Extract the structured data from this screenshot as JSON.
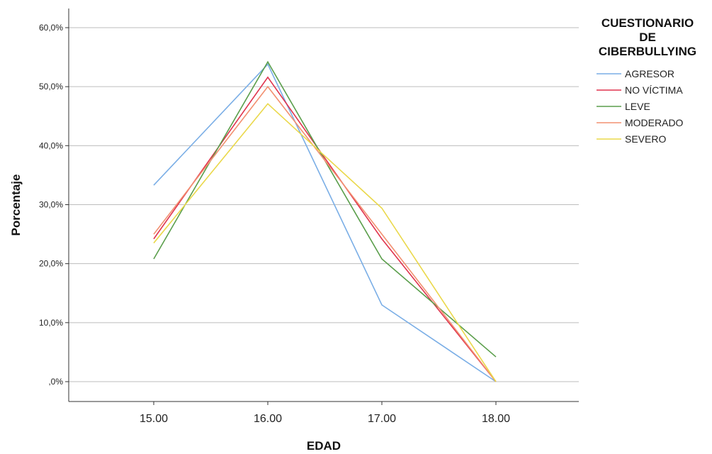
{
  "chart_data": {
    "type": "line",
    "title": "",
    "xlabel": "EDAD",
    "ylabel": "Porcentaje",
    "x": [
      "15.00",
      "16.00",
      "17.00",
      "18.00"
    ],
    "ylim": [
      0,
      60
    ],
    "yticks": [
      0,
      10,
      20,
      30,
      40,
      50,
      60
    ],
    "ytick_labels": [
      ",0%",
      "10,0%",
      "20,0%",
      "30,0%",
      "40,0%",
      "50,0%",
      "60,0%"
    ],
    "grid": true,
    "legend": {
      "title_lines": [
        "CUESTIONARIO",
        "DE",
        "CIBERBULLYING"
      ],
      "placement": "right"
    },
    "series": [
      {
        "name": "AGRESOR",
        "color": "#7aaee6",
        "values": [
          33.3,
          53.8,
          13.0,
          0.0
        ]
      },
      {
        "name": "NO VÍCTIMA",
        "color": "#e0344e",
        "values": [
          24.2,
          51.6,
          24.2,
          0.0
        ]
      },
      {
        "name": "LEVE",
        "color": "#5a9e4b",
        "values": [
          20.8,
          54.2,
          20.8,
          4.2
        ]
      },
      {
        "name": "MODERADO",
        "color": "#f29070",
        "values": [
          25.0,
          50.0,
          25.0,
          0.0
        ]
      },
      {
        "name": "SEVERO",
        "color": "#ead84a",
        "values": [
          23.5,
          47.1,
          29.4,
          0.0
        ]
      }
    ]
  }
}
